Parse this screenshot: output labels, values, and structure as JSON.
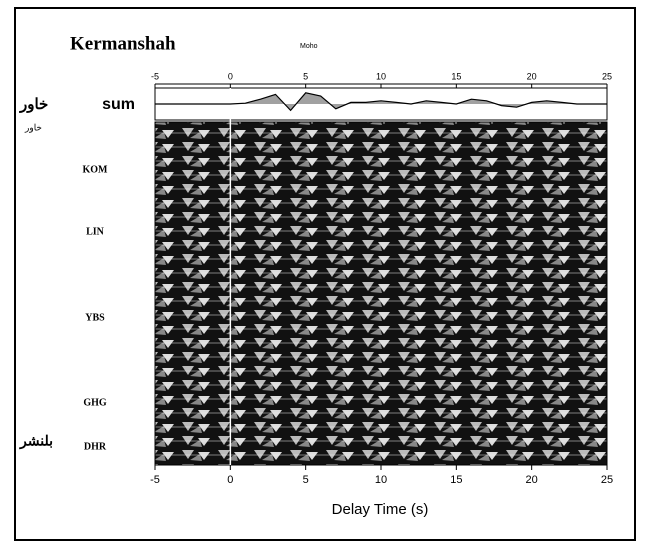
{
  "chart_data": {
    "type": "receiver-function",
    "title": "Kermanshah",
    "annotation": "Moho",
    "xlabel": "Delay Time (s)",
    "xlim": [
      -5,
      25
    ],
    "xticks": [
      -5,
      0,
      5,
      10,
      15,
      20,
      25
    ],
    "stations": [
      "KOM",
      "LIN",
      "YBS",
      "GHG",
      "DHR"
    ],
    "side_labels": [
      "خاور",
      "خاور",
      "بلنشر"
    ],
    "series": [
      {
        "name": "sum",
        "color": "#000000",
        "x": [
          -5,
          -4,
          -3,
          -2,
          -1,
          0,
          1,
          2,
          3,
          4,
          5,
          6,
          7,
          8,
          9,
          10,
          11,
          12,
          13,
          14,
          15,
          16,
          17,
          18,
          19,
          20,
          21,
          22,
          23,
          24,
          25
        ],
        "values": [
          0,
          0,
          0,
          0,
          0,
          0,
          0.05,
          0.3,
          0.6,
          -0.4,
          0.7,
          0.5,
          -0.3,
          0.1,
          0.1,
          0.2,
          0.1,
          0,
          0.2,
          0.1,
          0,
          0.3,
          0.2,
          -0.1,
          -0.2,
          0.1,
          0.2,
          0.1,
          0,
          0,
          0
        ]
      }
    ],
    "ylim": [
      -1,
      1
    ]
  }
}
